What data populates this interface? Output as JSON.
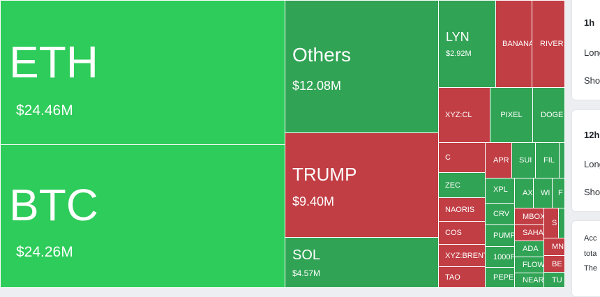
{
  "treemap": {
    "eth": {
      "symbol": "ETH",
      "value": "$24.46M"
    },
    "btc": {
      "symbol": "BTC",
      "value": "$24.26M"
    },
    "others": {
      "symbol": "Others",
      "value": "$12.08M"
    },
    "trump": {
      "symbol": "TRUMP",
      "value": "$9.40M"
    },
    "sol": {
      "symbol": "SOL",
      "value": "$4.57M"
    },
    "lyn": {
      "symbol": "LYN",
      "value": "$2.92M"
    },
    "small": {
      "banana": "BANANA",
      "river": "RIVER",
      "xyzcl": "XYZ:CL",
      "pixel": "PIXEL",
      "doge": "DOGE",
      "c": "C",
      "apr": "APR",
      "sui": "SUI",
      "fil": "FIL",
      "zec": "ZEC",
      "naoris": "NAORIS",
      "cos": "COS",
      "xyzbrent": "XYZ:BRENT",
      "tao": "TAO",
      "xpl": "XPL",
      "ax": "AX",
      "wi": "WI",
      "f": "F",
      "crv": "CRV",
      "pump": "PUMP",
      "thousandp": "1000P",
      "pepe": "PEPE",
      "mbox": "MBOX",
      "s": "S",
      "saha": "SAHA",
      "ada": "ADA",
      "mn": "MN",
      "flow": "FLOW",
      "be": "BE",
      "near": "NEAR",
      "tu": "TU"
    }
  },
  "side": {
    "card1": {
      "title": "1h",
      "row1": "Long",
      "row2": "Short"
    },
    "card2": {
      "title": "12h",
      "row1": "Long",
      "row2": "Short"
    },
    "card3": {
      "line1": "Acc",
      "line2": "tota",
      "line3": "The"
    }
  }
}
